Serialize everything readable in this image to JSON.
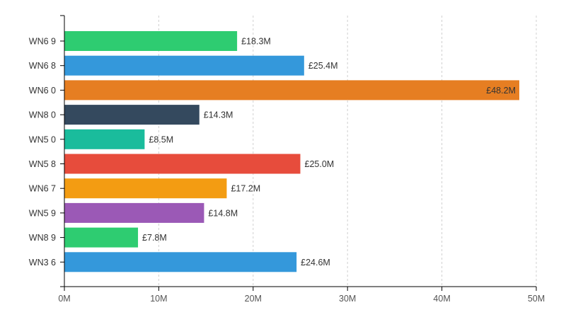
{
  "chart_data": {
    "type": "bar",
    "orientation": "horizontal",
    "title": "",
    "xlabel": "",
    "ylabel": "",
    "xlim": [
      0,
      50
    ],
    "x_ticks": [
      0,
      10,
      20,
      30,
      40,
      50
    ],
    "x_tick_labels": [
      "0M",
      "10M",
      "20M",
      "30M",
      "40M",
      "50M"
    ],
    "grid": "vertical-dashed",
    "legend": "none",
    "categories": [
      "WN6 9",
      "WN6 8",
      "WN6 0",
      "WN8 0",
      "WN5 0",
      "WN5 8",
      "WN6 7",
      "WN5 9",
      "WN8 9",
      "WN3 6"
    ],
    "values": [
      18.3,
      25.4,
      48.2,
      14.3,
      8.5,
      25.0,
      17.2,
      14.8,
      7.8,
      24.6
    ],
    "value_labels": [
      "£18.3M",
      "£25.4M",
      "£48.2M",
      "£14.3M",
      "£8.5M",
      "£25.0M",
      "£17.2M",
      "£14.8M",
      "£7.8M",
      "£24.6M"
    ],
    "colors": [
      "#2ecc71",
      "#3498db",
      "#e67e22",
      "#34495e",
      "#1abc9c",
      "#e74c3c",
      "#f39c12",
      "#9b59b6",
      "#2ecc71",
      "#3498db"
    ],
    "axis_color": "#000000",
    "grid_color": "#d0d0d0",
    "tick_label_color": "#555555",
    "category_label_color": "#333333",
    "value_label_color": "#333333"
  }
}
